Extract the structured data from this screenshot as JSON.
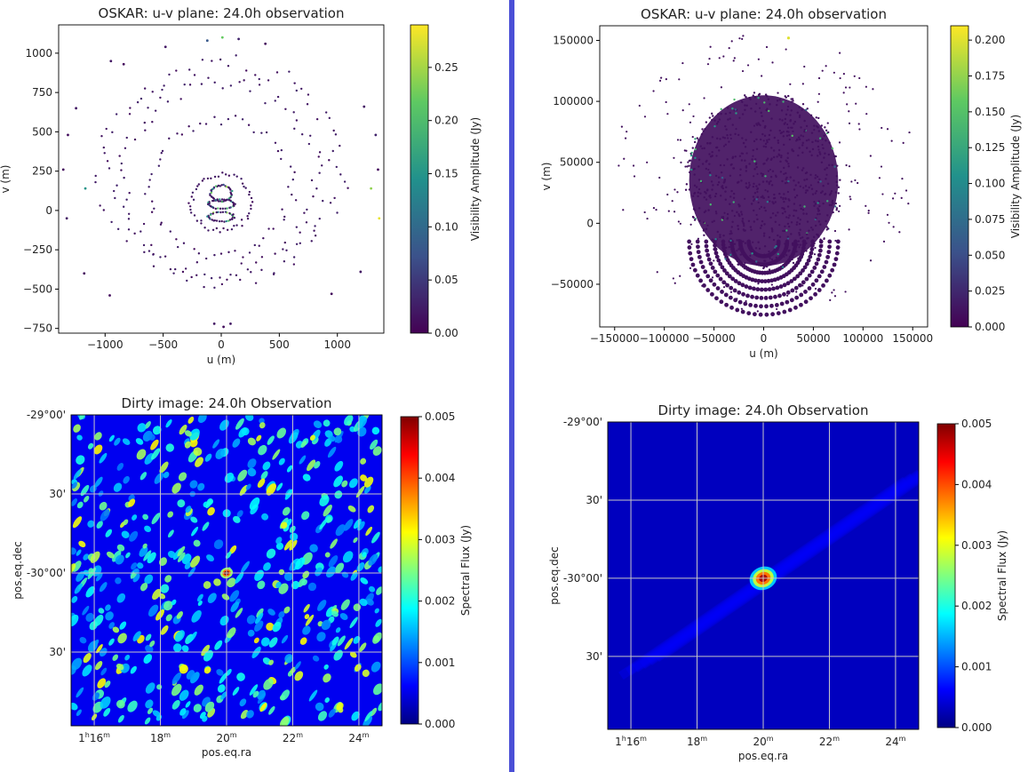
{
  "divider_color": "#4a4fd6",
  "chart_data": [
    {
      "type": "scatter",
      "title": "OSKAR: u-v plane: 24.0h observation",
      "xlabel": "u (m)",
      "ylabel": "v (m)",
      "xlim": [
        -1400,
        1400
      ],
      "ylim": [
        -780,
        1180
      ],
      "x_ticks": [
        -1000,
        -500,
        0,
        500,
        1000
      ],
      "x_tick_labels": [
        "−1000",
        "−500",
        "0",
        "500",
        "1000"
      ],
      "y_ticks": [
        -750,
        -500,
        -250,
        0,
        250,
        500,
        750,
        1000
      ],
      "y_tick_labels": [
        "−750",
        "−500",
        "−250",
        "0",
        "250",
        "500",
        "750",
        "1000"
      ],
      "colormap": "viridis",
      "colorbar": {
        "label": "Visibility Amplitude (Jy)",
        "range": [
          0,
          0.29
        ],
        "ticks": [
          0,
          0.05,
          0.1,
          0.15,
          0.2,
          0.25
        ],
        "tick_labels": [
          "0.00",
          "0.05",
          "0.10",
          "0.15",
          "0.20",
          "0.25"
        ]
      },
      "series": [
        {
          "points": [
            [
              -1320,
              480,
              0.01
            ],
            [
              -1250,
              650,
              0.02
            ],
            [
              -1170,
              140,
              0.15
            ],
            [
              -1330,
              -50,
              0.02
            ],
            [
              -1180,
              -400,
              0.01
            ],
            [
              -950,
              950,
              0.02
            ],
            [
              -840,
              930,
              0.01
            ],
            [
              -480,
              1040,
              0.02
            ],
            [
              -120,
              1080,
              0.08
            ],
            [
              10,
              1100,
              0.22
            ],
            [
              150,
              1090,
              0.03
            ],
            [
              380,
              1060,
              0.01
            ],
            [
              1230,
              660,
              0.02
            ],
            [
              1330,
              480,
              0.03
            ],
            [
              1290,
              140,
              0.24
            ],
            [
              1360,
              -50,
              0.28
            ],
            [
              1200,
              -390,
              0.02
            ],
            [
              950,
              -530,
              0.01
            ],
            [
              -960,
              -540,
              0.01
            ],
            [
              -60,
              -720,
              0.02
            ],
            [
              20,
              -740,
              0.01
            ],
            [
              80,
              -720,
              0.02
            ],
            [
              -1360,
              260,
              0.01
            ],
            [
              1350,
              260,
              0.01
            ]
          ]
        },
        {
          "rings": [
            {
              "cx": 0,
              "cy": 150,
              "rx": 600,
              "ry": 430,
              "n": 60
            },
            {
              "cx": 0,
              "cy": 200,
              "rx": 850,
              "ry": 600,
              "n": 80
            },
            {
              "cx": 0,
              "cy": 250,
              "rx": 1020,
              "ry": 680,
              "n": 90
            },
            {
              "cx": 0,
              "cy": 50,
              "rx": 260,
              "ry": 180,
              "n": 50
            },
            {
              "cx": 0,
              "cy": 110,
              "rx": 90,
              "ry": 50,
              "n": 40
            },
            {
              "cx": 0,
              "cy": 40,
              "rx": 110,
              "ry": 30,
              "n": 34
            },
            {
              "cx": 0,
              "cy": -40,
              "rx": 110,
              "ry": 30,
              "n": 34
            }
          ]
        }
      ]
    },
    {
      "type": "scatter",
      "title": "OSKAR: u-v plane: 24.0h observation",
      "xlabel": "u (m)",
      "ylabel": "v (m)",
      "xlim": [
        -165000,
        165000
      ],
      "ylim": [
        -85000,
        162000
      ],
      "x_ticks": [
        -150000,
        -100000,
        -50000,
        0,
        50000,
        100000,
        150000
      ],
      "x_tick_labels": [
        "−150000",
        "−100000",
        "−50000",
        "0",
        "50000",
        "100000",
        "150000"
      ],
      "y_ticks": [
        -50000,
        0,
        50000,
        100000,
        150000
      ],
      "y_tick_labels": [
        "−50000",
        "0",
        "50000",
        "100000",
        "150000"
      ],
      "colormap": "viridis",
      "colorbar": {
        "label": "Visibility Amplitude (Jy)",
        "range": [
          0,
          0.21
        ],
        "ticks": [
          0,
          0.025,
          0.05,
          0.075,
          0.1,
          0.125,
          0.15,
          0.175,
          0.2
        ],
        "tick_labels": [
          "0.000",
          "0.025",
          "0.050",
          "0.075",
          "0.100",
          "0.125",
          "0.150",
          "0.175",
          "0.200"
        ]
      },
      "cloud": {
        "cx": 0,
        "cy": 35000,
        "rx": 75000,
        "ry": 70000,
        "n": 700
      },
      "outer": {
        "cx": 0,
        "cy": 40000,
        "rx": 155000,
        "ry": 115000,
        "n": 260
      },
      "arcs": {
        "cx": 0,
        "cy": -15000,
        "n_rings": 8,
        "r_min": 15000,
        "r_max": 75000
      }
    },
    {
      "type": "heatmap",
      "title": "Dirty image: 24.0h Observation",
      "xlabel": "pos.eq.ra",
      "ylabel": "pos.eq.dec",
      "colormap": "jet",
      "x_ticks_minutes": [
        16,
        18,
        20,
        22,
        24
      ],
      "x_tick_labels": [
        {
          "h": "1",
          "m": "16"
        },
        {
          "h": "",
          "m": "18"
        },
        {
          "h": "",
          "m": "20"
        },
        {
          "h": "",
          "m": "22"
        },
        {
          "h": "",
          "m": "24"
        }
      ],
      "x_range_minutes": [
        15.3,
        24.7
      ],
      "y_ticks_arcmin": [
        0,
        30,
        60,
        90
      ],
      "y_tick_labels": [
        "-29°00'",
        "30'",
        "-30°00'",
        "30'"
      ],
      "y_range_arcmin": [
        0,
        118
      ],
      "colorbar": {
        "label": "Spectral Flux (Jy)",
        "range": [
          0,
          0.005
        ],
        "ticks": [
          0,
          0.001,
          0.002,
          0.003,
          0.004,
          0.005
        ],
        "tick_labels": [
          "0.000",
          "0.001",
          "0.002",
          "0.003",
          "0.004",
          "0.005"
        ]
      },
      "source": {
        "ra_min": 20.0,
        "dec_arcmin": 60,
        "flux": 0.005
      },
      "noise_level": "high"
    },
    {
      "type": "heatmap",
      "title": "Dirty image: 24.0h Observation",
      "xlabel": "pos.eq.ra",
      "ylabel": "pos.eq.dec",
      "colormap": "jet",
      "x_ticks_minutes": [
        16,
        18,
        20,
        22,
        24
      ],
      "x_tick_labels": [
        {
          "h": "1",
          "m": "16"
        },
        {
          "h": "",
          "m": "18"
        },
        {
          "h": "",
          "m": "20"
        },
        {
          "h": "",
          "m": "22"
        },
        {
          "h": "",
          "m": "24"
        }
      ],
      "x_range_minutes": [
        15.3,
        24.7
      ],
      "y_ticks_arcmin": [
        0,
        30,
        60,
        90
      ],
      "y_tick_labels": [
        "-29°00'",
        "30'",
        "-30°00'",
        "30'"
      ],
      "y_range_arcmin": [
        0,
        118
      ],
      "colorbar": {
        "label": "Spectral Flux (Jy)",
        "range": [
          0,
          0.005
        ],
        "ticks": [
          0,
          0.001,
          0.002,
          0.003,
          0.004,
          0.005
        ],
        "tick_labels": [
          "0.000",
          "0.001",
          "0.002",
          "0.003",
          "0.004",
          "0.005"
        ]
      },
      "source": {
        "ra_min": 20.0,
        "dec_arcmin": 60,
        "flux": 0.005
      },
      "noise_level": "low"
    }
  ]
}
